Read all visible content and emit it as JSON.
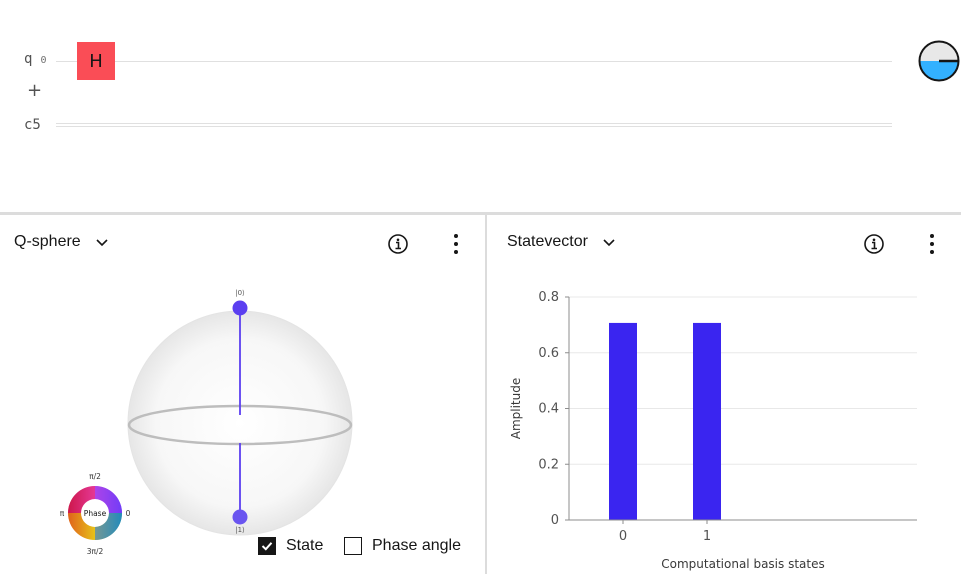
{
  "circuit": {
    "qubit_label": "q",
    "qubit_index": "0",
    "classical_label": "c5",
    "add_symbol": "+",
    "gate_label": "H",
    "gate_color": "#fa4d56",
    "probability_fill_color": "#33b1ff"
  },
  "qsphere": {
    "title": "Q-sphere",
    "label_top": "|0⟩",
    "label_bottom": "|1⟩",
    "phase_wheel": {
      "center": "Phase",
      "top": "π/2",
      "left": "π",
      "right": "0",
      "bottom": "3π/2"
    },
    "state_checkbox": {
      "label": "State",
      "checked": true
    },
    "phase_checkbox": {
      "label": "Phase angle",
      "checked": false
    },
    "state_color": "#5b3ff0"
  },
  "statevector": {
    "title": "Statevector",
    "chart_data": {
      "type": "bar",
      "categories": [
        "0",
        "1"
      ],
      "values": [
        0.707,
        0.707
      ],
      "ylabel": "Amplitude",
      "xlabel": "Computational basis states",
      "ylim": [
        0,
        0.8
      ],
      "yticks": [
        "0",
        "0.2",
        "0.4",
        "0.6",
        "0.8"
      ],
      "bar_color": "#3a25f0",
      "grid": true
    }
  }
}
